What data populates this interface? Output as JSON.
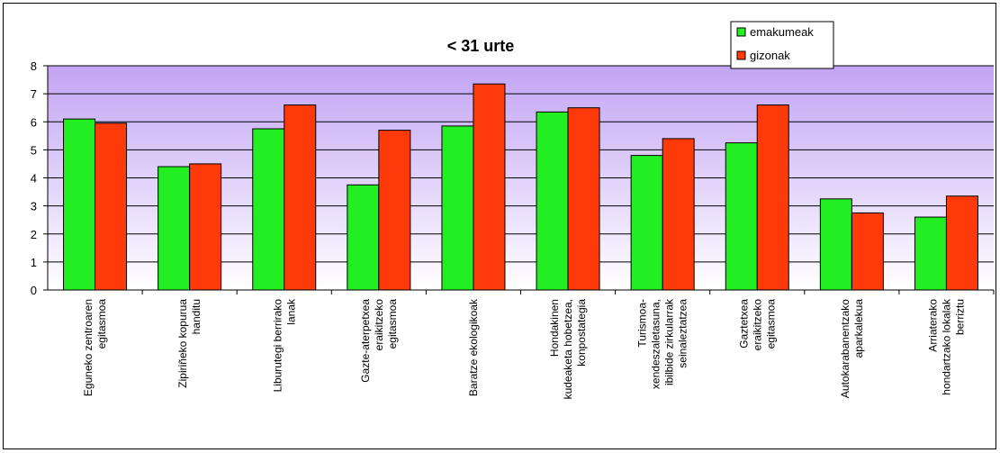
{
  "chart_data": {
    "type": "bar",
    "title": "< 31 urte",
    "xlabel": "",
    "ylabel": "",
    "ylim": [
      0,
      8
    ],
    "yticks": [
      0,
      1,
      2,
      3,
      4,
      5,
      6,
      7,
      8
    ],
    "grid": true,
    "legend_position": "top-right",
    "categories": [
      [
        "Eguneko zentroaren",
        "egitasmoa"
      ],
      [
        "Zipiriñeko kopurua",
        "handitu"
      ],
      [
        "Liburutegi berrirako",
        "lanak"
      ],
      [
        "Gazte-aterpetxea",
        "eraikitzeko",
        "egitasmoa"
      ],
      [
        "Baratze ekologikoak"
      ],
      [
        "Hondakinen",
        "kudeaketa hobetzea,",
        "konpostategia"
      ],
      [
        "Turismoa-",
        "xendeszaletasuna,",
        "ibilbide zirkularrak",
        "seinaleztatzea"
      ],
      [
        "Gaztetxea",
        "eraikitzeko",
        "egitasmoa"
      ],
      [
        "Autokarabanentzako",
        "aparkalekua"
      ],
      [
        "Arriaterako",
        "hondartzako lokalak",
        "berriztu"
      ]
    ],
    "series": [
      {
        "name": "emakumeak",
        "color": "#22ee22",
        "values": [
          6.1,
          4.4,
          5.75,
          3.75,
          5.85,
          6.35,
          4.8,
          5.25,
          3.25,
          2.6
        ]
      },
      {
        "name": "gizonak",
        "color": "#ff3a0a",
        "values": [
          5.95,
          4.5,
          6.6,
          5.7,
          7.35,
          6.5,
          5.4,
          6.6,
          2.75,
          3.35
        ]
      }
    ],
    "plot_gradient": {
      "top": "#c2a4f4",
      "bottom": "#ffffff"
    }
  }
}
